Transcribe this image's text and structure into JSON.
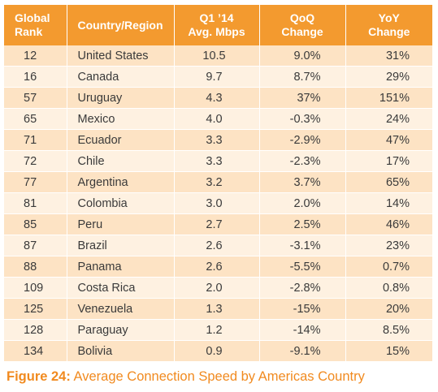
{
  "table": {
    "headers": {
      "rank": "Global\nRank",
      "country": "Country/Region",
      "speed": "Q1 ’14\nAvg. Mbps",
      "qoq": "QoQ\nChange",
      "yoy": "YoY\nChange"
    },
    "rows": [
      {
        "rank": "12",
        "country": "United States",
        "speed": "10.5",
        "qoq": "9.0%",
        "yoy": "31%"
      },
      {
        "rank": "16",
        "country": "Canada",
        "speed": "9.7",
        "qoq": "8.7%",
        "yoy": "29%"
      },
      {
        "rank": "57",
        "country": "Uruguay",
        "speed": "4.3",
        "qoq": "37%",
        "yoy": "151%"
      },
      {
        "rank": "65",
        "country": "Mexico",
        "speed": "4.0",
        "qoq": "-0.3%",
        "yoy": "24%"
      },
      {
        "rank": "71",
        "country": "Ecuador",
        "speed": "3.3",
        "qoq": "-2.9%",
        "yoy": "47%"
      },
      {
        "rank": "72",
        "country": "Chile",
        "speed": "3.3",
        "qoq": "-2.3%",
        "yoy": "17%"
      },
      {
        "rank": "77",
        "country": "Argentina",
        "speed": "3.2",
        "qoq": "3.7%",
        "yoy": "65%"
      },
      {
        "rank": "81",
        "country": "Colombia",
        "speed": "3.0",
        "qoq": "2.0%",
        "yoy": "14%"
      },
      {
        "rank": "85",
        "country": "Peru",
        "speed": "2.7",
        "qoq": "2.5%",
        "yoy": "46%"
      },
      {
        "rank": "87",
        "country": "Brazil",
        "speed": "2.6",
        "qoq": "-3.1%",
        "yoy": "23%"
      },
      {
        "rank": "88",
        "country": "Panama",
        "speed": "2.6",
        "qoq": "-5.5%",
        "yoy": "0.7%"
      },
      {
        "rank": "109",
        "country": "Costa Rica",
        "speed": "2.0",
        "qoq": "-2.8%",
        "yoy": "0.8%"
      },
      {
        "rank": "125",
        "country": "Venezuela",
        "speed": "1.3",
        "qoq": "-15%",
        "yoy": "20%"
      },
      {
        "rank": "128",
        "country": "Paraguay",
        "speed": "1.2",
        "qoq": "-14%",
        "yoy": "8.5%"
      },
      {
        "rank": "134",
        "country": "Bolivia",
        "speed": "0.9",
        "qoq": "-9.1%",
        "yoy": "15%"
      }
    ]
  },
  "caption": {
    "label": "Figure 24:",
    "text": " Average Connection Speed by Americas Country"
  },
  "colors": {
    "header_bg": "#f39a2f",
    "row_dark": "#fde3c4",
    "row_light": "#fef1e1",
    "caption": "#f18a1f"
  }
}
